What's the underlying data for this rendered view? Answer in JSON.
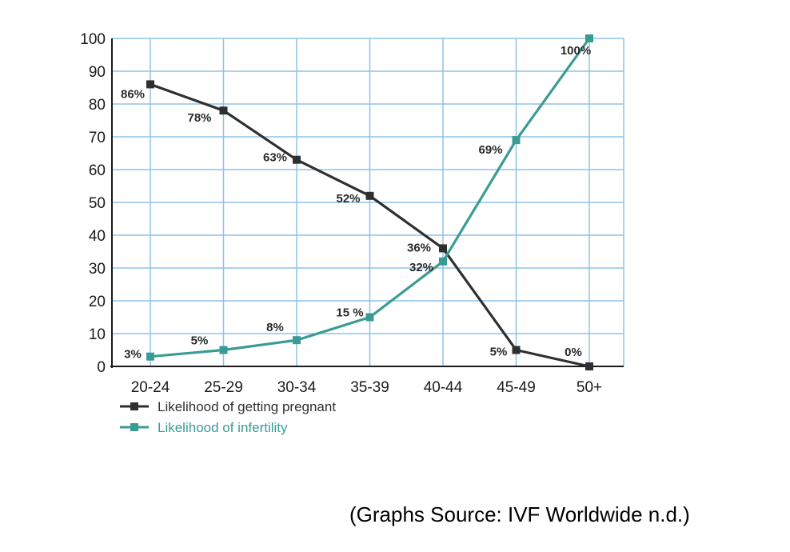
{
  "chart_data": {
    "type": "line",
    "categories": [
      "20-24",
      "25-29",
      "30-34",
      "35-39",
      "40-44",
      "45-49",
      "50+"
    ],
    "ylim": [
      0,
      100
    ],
    "yticks": [
      0,
      10,
      20,
      30,
      40,
      50,
      60,
      70,
      80,
      90,
      100
    ],
    "grid": true,
    "legend_position": "bottom-left",
    "series": [
      {
        "name": "Likelihood of getting pregnant",
        "color": "#2f2f2f",
        "marker": "square",
        "values": [
          86,
          78,
          63,
          52,
          36,
          5,
          0
        ],
        "labels": [
          "86%",
          "78%",
          "63%",
          "52%",
          "36%",
          "5%",
          "0%"
        ]
      },
      {
        "name": "Likelihood of infertility",
        "color": "#3a9b95",
        "marker": "square",
        "values": [
          3,
          5,
          8,
          15,
          32,
          69,
          100
        ],
        "labels": [
          "3%",
          "5%",
          "8%",
          "15 %",
          "32%",
          "69%",
          "100%"
        ]
      }
    ]
  },
  "source": "(Graphs Source: IVF Worldwide n.d.)",
  "colors": {
    "grid": "#8ec3e6",
    "axis": "#1a1a1a"
  }
}
